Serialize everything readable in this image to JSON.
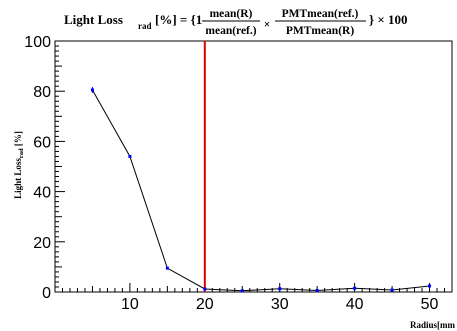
{
  "chart_data": {
    "type": "line",
    "title": {
      "lead": "Light Loss",
      "lead_sub": "rad",
      "unit": "[%] = {1-",
      "num1": "mean(R)",
      "den1": "mean(ref.)",
      "times": "×",
      "num2": "PMTmean(ref.)",
      "den2": "PMTmean(R)",
      "tail": "} × 100"
    },
    "ylabel": {
      "main": "Light Loss",
      "sub": "rad",
      "unit": " [%]"
    },
    "xlabel": "Radius[mm",
    "xlim": [
      0,
      53
    ],
    "ylim": [
      0,
      100
    ],
    "x_ticks": [
      10,
      20,
      30,
      40,
      50
    ],
    "y_ticks": [
      0,
      20,
      40,
      60,
      80,
      100
    ],
    "x_tick_labels": [
      "10",
      "20",
      "30",
      "40",
      "50"
    ],
    "y_tick_labels": [
      "0",
      "20",
      "40",
      "60",
      "80",
      "100"
    ],
    "series": [
      {
        "x": [
          5,
          10,
          15,
          20,
          25,
          30,
          35,
          40,
          45,
          50
        ],
        "y": [
          80.5,
          54,
          9.5,
          1.2,
          0.5,
          1.3,
          0.6,
          1.5,
          0.8,
          2.4
        ],
        "yerr": [
          1.2,
          0.5,
          0.5,
          0.5,
          0.4,
          1.0,
          0.4,
          0.8,
          0.5,
          0.7
        ],
        "color": "#0000ff",
        "line_color": "#000000"
      }
    ],
    "reference_line": {
      "x": 20,
      "color": "#e00000"
    },
    "grid": false,
    "legend": "none"
  }
}
